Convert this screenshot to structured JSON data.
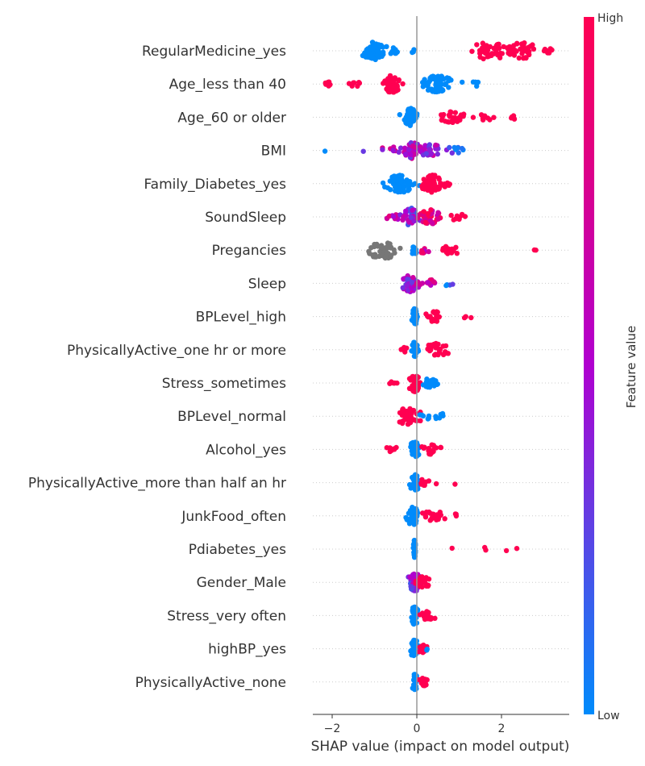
{
  "chart_data": {
    "type": "scatter",
    "subtype": "shap-beeswarm",
    "title": "",
    "xlabel": "SHAP value (impact on model output)",
    "xlim": [
      -2.5,
      3.6
    ],
    "xticks": [
      -2,
      0,
      2
    ],
    "xtick_labels": [
      "−2",
      "0",
      "2"
    ],
    "grid": false,
    "colorbar": {
      "title": "Feature value",
      "high_label": "High",
      "low_label": "Low",
      "high_color": "#ff0051",
      "low_color": "#008bfb",
      "mid_color": "#b000d0"
    },
    "missing_value_color": "#777777",
    "features": [
      {
        "name": "RegularMedicine_yes",
        "clusters": [
          {
            "x": -1.0,
            "spread": 0.28,
            "n": 70,
            "value": 0.0
          },
          {
            "x": -0.55,
            "spread": 0.12,
            "n": 10,
            "value": 0.0
          },
          {
            "x": -0.1,
            "spread": 0.05,
            "n": 3,
            "value": 0.0
          },
          {
            "x": 1.7,
            "spread": 0.45,
            "n": 45,
            "value": 1.0
          },
          {
            "x": 2.5,
            "spread": 0.4,
            "n": 40,
            "value": 1.0
          },
          {
            "x": 3.1,
            "spread": 0.12,
            "n": 6,
            "value": 1.0
          }
        ]
      },
      {
        "name": "Age_less than 40",
        "clusters": [
          {
            "x": -2.1,
            "spread": 0.1,
            "n": 8,
            "value": 1.0
          },
          {
            "x": -1.5,
            "spread": 0.25,
            "n": 8,
            "value": 1.0
          },
          {
            "x": -0.6,
            "spread": 0.18,
            "n": 55,
            "value": 1.0
          },
          {
            "x": 0.5,
            "spread": 0.3,
            "n": 65,
            "value": 0.0
          },
          {
            "x": 1.4,
            "spread": 0.15,
            "n": 4,
            "value": 0.0
          }
        ]
      },
      {
        "name": "Age_60 or older",
        "clusters": [
          {
            "x": -0.15,
            "spread": 0.15,
            "n": 50,
            "value": 0.0
          },
          {
            "x": 0.85,
            "spread": 0.25,
            "n": 25,
            "value": 1.0
          },
          {
            "x": 1.6,
            "spread": 0.3,
            "n": 10,
            "value": 1.0
          },
          {
            "x": 2.25,
            "spread": 0.12,
            "n": 4,
            "value": 1.0
          }
        ]
      },
      {
        "name": "BMI",
        "clusters": [
          {
            "x": -2.15,
            "spread": 0.03,
            "n": 1,
            "value": 0.05
          },
          {
            "x": -1.25,
            "spread": 0.05,
            "n": 1,
            "value": 0.3
          },
          {
            "x": -0.6,
            "spread": 0.25,
            "n": 12,
            "value": 0.6
          },
          {
            "x": -0.1,
            "spread": 0.2,
            "n": 40,
            "value": 0.5
          },
          {
            "x": 0.3,
            "spread": 0.25,
            "n": 30,
            "value": 0.45
          },
          {
            "x": 0.9,
            "spread": 0.25,
            "n": 10,
            "value": 0.2
          }
        ]
      },
      {
        "name": "Family_Diabetes_yes",
        "clusters": [
          {
            "x": -0.4,
            "spread": 0.3,
            "n": 70,
            "value": 0.0
          },
          {
            "x": 0.35,
            "spread": 0.25,
            "n": 60,
            "value": 1.0
          },
          {
            "x": 0.75,
            "spread": 0.08,
            "n": 5,
            "value": 1.0
          }
        ]
      },
      {
        "name": "SoundSleep",
        "clusters": [
          {
            "x": -0.55,
            "spread": 0.15,
            "n": 10,
            "value": 0.7
          },
          {
            "x": -0.15,
            "spread": 0.2,
            "n": 45,
            "value": 0.4
          },
          {
            "x": 0.3,
            "spread": 0.25,
            "n": 35,
            "value": 0.85
          },
          {
            "x": 0.95,
            "spread": 0.25,
            "n": 10,
            "value": 1.0
          }
        ]
      },
      {
        "name": "Pregancies",
        "clusters": [
          {
            "x": -0.8,
            "spread": 0.32,
            "n": 45,
            "value": null
          },
          {
            "x": -0.05,
            "spread": 0.08,
            "n": 15,
            "value": 0.0
          },
          {
            "x": 0.15,
            "spread": 0.12,
            "n": 8,
            "value": 0.7
          },
          {
            "x": 0.8,
            "spread": 0.25,
            "n": 15,
            "value": 1.0
          },
          {
            "x": 2.75,
            "spread": 0.15,
            "n": 2,
            "value": 1.0
          }
        ]
      },
      {
        "name": "Sleep",
        "clusters": [
          {
            "x": -0.15,
            "spread": 0.18,
            "n": 45,
            "value": 0.45
          },
          {
            "x": 0.25,
            "spread": 0.15,
            "n": 15,
            "value": 0.75
          },
          {
            "x": 0.75,
            "spread": 0.15,
            "n": 4,
            "value": 0.1
          }
        ]
      },
      {
        "name": "BPLevel_high",
        "clusters": [
          {
            "x": -0.05,
            "spread": 0.07,
            "n": 40,
            "value": 0.0
          },
          {
            "x": 0.35,
            "spread": 0.2,
            "n": 25,
            "value": 1.0
          },
          {
            "x": 1.15,
            "spread": 0.15,
            "n": 3,
            "value": 1.0
          }
        ]
      },
      {
        "name": "PhysicallyActive_one hr or more",
        "clusters": [
          {
            "x": -0.05,
            "spread": 0.08,
            "n": 40,
            "value": 0.0
          },
          {
            "x": -0.3,
            "spread": 0.1,
            "n": 5,
            "value": 1.0
          },
          {
            "x": 0.5,
            "spread": 0.3,
            "n": 30,
            "value": 1.0
          }
        ]
      },
      {
        "name": "Stress_sometimes",
        "clusters": [
          {
            "x": -0.05,
            "spread": 0.12,
            "n": 45,
            "value": 1.0
          },
          {
            "x": -0.55,
            "spread": 0.1,
            "n": 6,
            "value": 1.0
          },
          {
            "x": 0.3,
            "spread": 0.2,
            "n": 20,
            "value": 0.0
          }
        ]
      },
      {
        "name": "BPLevel_normal",
        "clusters": [
          {
            "x": -0.2,
            "spread": 0.25,
            "n": 45,
            "value": 1.0
          },
          {
            "x": 0.4,
            "spread": 0.25,
            "n": 12,
            "value": 0.0
          }
        ]
      },
      {
        "name": "Alcohol_yes",
        "clusters": [
          {
            "x": -0.05,
            "spread": 0.1,
            "n": 40,
            "value": 0.0
          },
          {
            "x": -0.55,
            "spread": 0.15,
            "n": 8,
            "value": 1.0
          },
          {
            "x": 0.35,
            "spread": 0.2,
            "n": 20,
            "value": 1.0
          }
        ]
      },
      {
        "name": "PhysicallyActive_more than half an hr",
        "clusters": [
          {
            "x": -0.05,
            "spread": 0.1,
            "n": 40,
            "value": 0.0
          },
          {
            "x": 0.15,
            "spread": 0.12,
            "n": 10,
            "value": 1.0
          },
          {
            "x": 0.45,
            "spread": 0.05,
            "n": 1,
            "value": 1.0
          },
          {
            "x": 0.9,
            "spread": 0.05,
            "n": 1,
            "value": 1.0
          }
        ]
      },
      {
        "name": "JunkFood_often",
        "clusters": [
          {
            "x": -0.1,
            "spread": 0.12,
            "n": 45,
            "value": 0.0
          },
          {
            "x": 0.4,
            "spread": 0.25,
            "n": 20,
            "value": 1.0
          },
          {
            "x": 0.9,
            "spread": 0.1,
            "n": 3,
            "value": 1.0
          }
        ]
      },
      {
        "name": "Pdiabetes_yes",
        "clusters": [
          {
            "x": -0.05,
            "spread": 0.02,
            "n": 50,
            "value": 0.0
          },
          {
            "x": 0.85,
            "spread": 0.03,
            "n": 1,
            "value": 1.0
          },
          {
            "x": 1.6,
            "spread": 0.05,
            "n": 2,
            "value": 1.0
          },
          {
            "x": 2.1,
            "spread": 0.05,
            "n": 1,
            "value": 1.0
          },
          {
            "x": 2.4,
            "spread": 0.05,
            "n": 1,
            "value": 1.0
          }
        ]
      },
      {
        "name": "Gender_Male",
        "clusters": [
          {
            "x": -0.05,
            "spread": 0.15,
            "n": 45,
            "value": 0.4
          },
          {
            "x": 0.1,
            "spread": 0.2,
            "n": 25,
            "value": 1.0
          }
        ]
      },
      {
        "name": "Stress_very often",
        "clusters": [
          {
            "x": -0.05,
            "spread": 0.07,
            "n": 45,
            "value": 0.0
          },
          {
            "x": 0.25,
            "spread": 0.15,
            "n": 20,
            "value": 1.0
          }
        ]
      },
      {
        "name": "highBP_yes",
        "clusters": [
          {
            "x": -0.05,
            "spread": 0.08,
            "n": 45,
            "value": 0.0
          },
          {
            "x": 0.1,
            "spread": 0.1,
            "n": 15,
            "value": 1.0
          },
          {
            "x": 0.25,
            "spread": 0.05,
            "n": 2,
            "value": 0.0
          }
        ]
      },
      {
        "name": "PhysicallyActive_none",
        "clusters": [
          {
            "x": -0.05,
            "spread": 0.04,
            "n": 40,
            "value": 0.0
          },
          {
            "x": 0.15,
            "spread": 0.1,
            "n": 15,
            "value": 1.0
          }
        ]
      }
    ]
  }
}
